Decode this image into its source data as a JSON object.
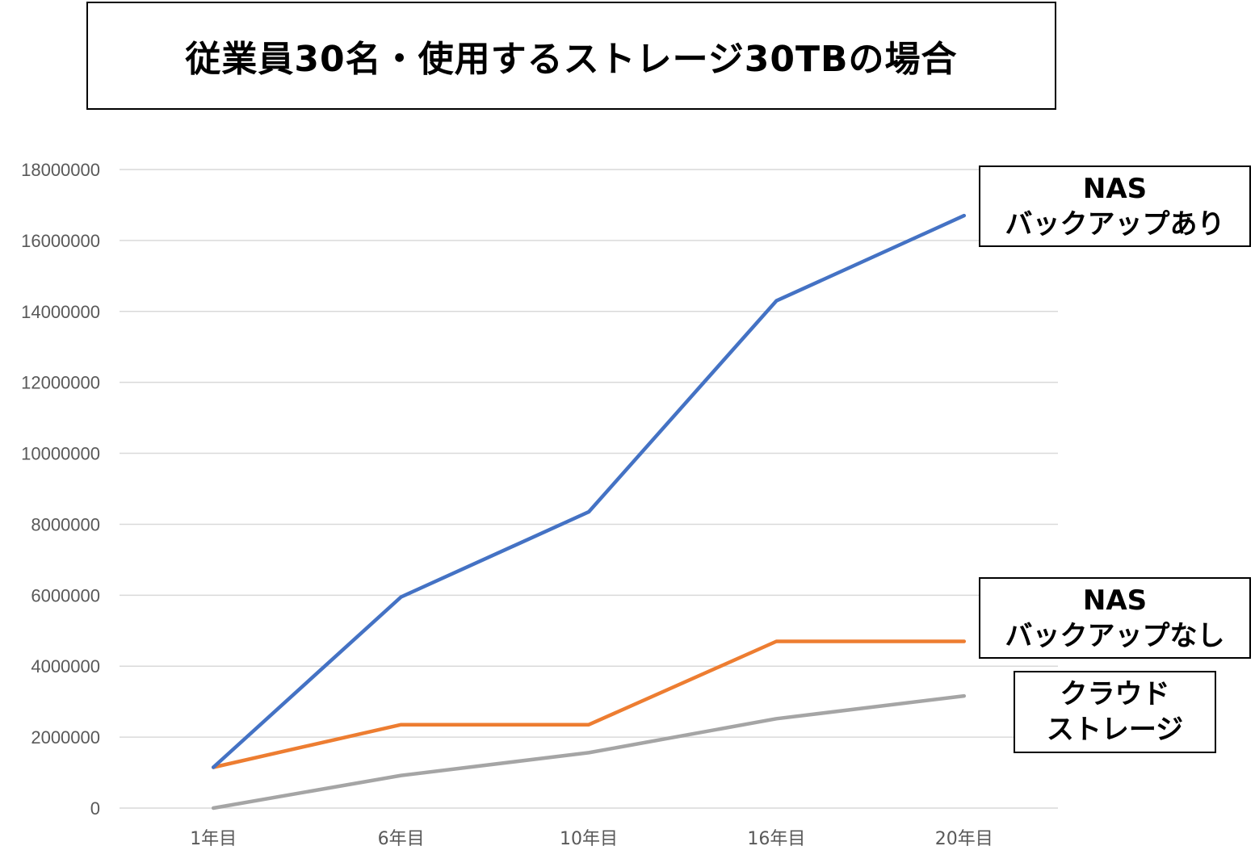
{
  "chart_data": {
    "type": "line",
    "title": "従業員30名・使用するストレージ30TBの場合",
    "categories": [
      "1年目",
      "6年目",
      "10年目",
      "16年目",
      "20年目"
    ],
    "ylim": [
      0,
      18000000
    ],
    "yticks": [
      0,
      2000000,
      4000000,
      6000000,
      8000000,
      10000000,
      12000000,
      14000000,
      16000000,
      18000000
    ],
    "grid": true,
    "series": [
      {
        "name": "NAS バックアップあり",
        "label_lines": [
          "NAS",
          "バックアップあり"
        ],
        "color": "#4472C4",
        "values": [
          1150000,
          5950000,
          8350000,
          14300000,
          16700000
        ]
      },
      {
        "name": "NAS バックアップなし",
        "label_lines": [
          "NAS",
          "バックアップなし"
        ],
        "color": "#ED7D31",
        "values": [
          1150000,
          2350000,
          2350000,
          4700000,
          4700000
        ]
      },
      {
        "name": "クラウドストレージ",
        "label_lines": [
          "クラウド",
          "ストレージ"
        ],
        "color": "#A5A5A5",
        "values": [
          0,
          920000,
          1560000,
          2520000,
          3160000
        ]
      }
    ]
  }
}
